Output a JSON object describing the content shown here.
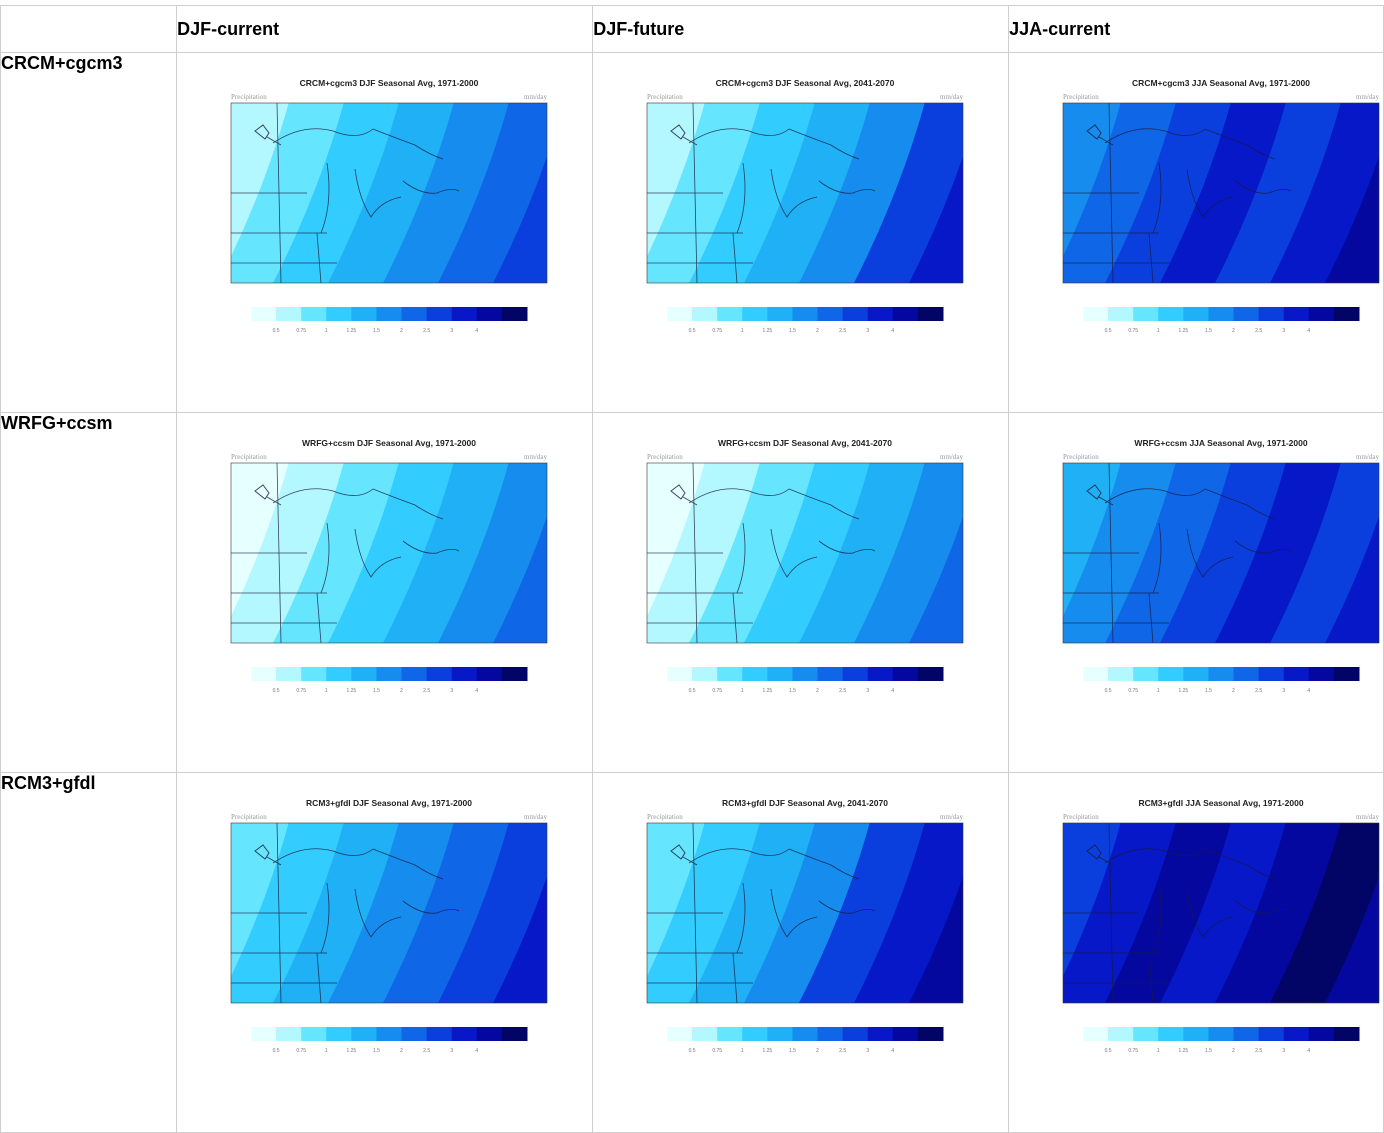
{
  "columns": [
    "",
    "DJF-current",
    "DJF-future",
    "JJA-current"
  ],
  "rows": [
    {
      "label": "CRCM+cgcm3",
      "maps": [
        {
          "title": "CRCM+cgcm3 DJF Seasonal Avg, 1971-2000",
          "palette": "djf_cur_crcm"
        },
        {
          "title": "CRCM+cgcm3 DJF Seasonal Avg, 2041-2070",
          "palette": "djf_fut_crcm"
        },
        {
          "title": "CRCM+cgcm3 JJA Seasonal Avg, 1971-2000",
          "palette": "jja_cur_crcm"
        }
      ]
    },
    {
      "label": "WRFG+ccsm",
      "maps": [
        {
          "title": "WRFG+ccsm DJF Seasonal Avg, 1971-2000",
          "palette": "djf_cur_wrfg"
        },
        {
          "title": "WRFG+ccsm DJF Seasonal Avg, 2041-2070",
          "palette": "djf_fut_wrfg"
        },
        {
          "title": "WRFG+ccsm JJA Seasonal Avg, 1971-2000",
          "palette": "jja_cur_wrfg"
        }
      ]
    },
    {
      "label": "RCM3+gfdl",
      "maps": [
        {
          "title": "RCM3+gfdl DJF Seasonal Avg, 1971-2000",
          "palette": "djf_cur_rcm3"
        },
        {
          "title": "RCM3+gfdl DJF Seasonal Avg, 2041-2070",
          "palette": "djf_fut_rcm3"
        },
        {
          "title": "RCM3+gfdl JJA Seasonal Avg, 1971-2000",
          "palette": "jja_cur_rcm3"
        }
      ]
    }
  ],
  "map_left_label": "Precipitation",
  "map_right_label": "mm/day",
  "colorbar_ticks": [
    "0.5",
    "0.75",
    "1",
    "1.25",
    "1.5",
    "2",
    "2.5",
    "3",
    "4"
  ],
  "colorbar_colors": [
    "#e6ffff",
    "#b3f7ff",
    "#66e5ff",
    "#33ccff",
    "#1fb0f5",
    "#168cee",
    "#0f66e6",
    "#0a3fdd",
    "#0618c8",
    "#04089e",
    "#020466"
  ],
  "map_color_sets": {
    "djf_cur_crcm": [
      "#b3f7ff",
      "#66e5ff",
      "#33ccff",
      "#1fb0f5",
      "#168cee",
      "#0f66e6",
      "#0a3fdd"
    ],
    "djf_fut_crcm": [
      "#b3f7ff",
      "#66e5ff",
      "#33ccff",
      "#1fb0f5",
      "#168cee",
      "#0a3fdd",
      "#0618c8"
    ],
    "jja_cur_crcm": [
      "#168cee",
      "#0f66e6",
      "#0a3fdd",
      "#0618c8",
      "#0a3fdd",
      "#0618c8",
      "#04089e"
    ],
    "djf_cur_wrfg": [
      "#e6ffff",
      "#b3f7ff",
      "#66e5ff",
      "#33ccff",
      "#1fb0f5",
      "#168cee",
      "#0f66e6"
    ],
    "djf_fut_wrfg": [
      "#e6ffff",
      "#b3f7ff",
      "#66e5ff",
      "#33ccff",
      "#1fb0f5",
      "#168cee",
      "#0f66e6"
    ],
    "jja_cur_wrfg": [
      "#1fb0f5",
      "#168cee",
      "#0f66e6",
      "#0a3fdd",
      "#0618c8",
      "#0a3fdd",
      "#0618c8"
    ],
    "djf_cur_rcm3": [
      "#66e5ff",
      "#33ccff",
      "#1fb0f5",
      "#168cee",
      "#0f66e6",
      "#0a3fdd",
      "#0618c8"
    ],
    "djf_fut_rcm3": [
      "#66e5ff",
      "#33ccff",
      "#1fb0f5",
      "#168cee",
      "#0a3fdd",
      "#0618c8",
      "#04089e"
    ],
    "jja_cur_rcm3": [
      "#0a3fdd",
      "#0618c8",
      "#04089e",
      "#0618c8",
      "#04089e",
      "#020466",
      "#04089e"
    ]
  }
}
